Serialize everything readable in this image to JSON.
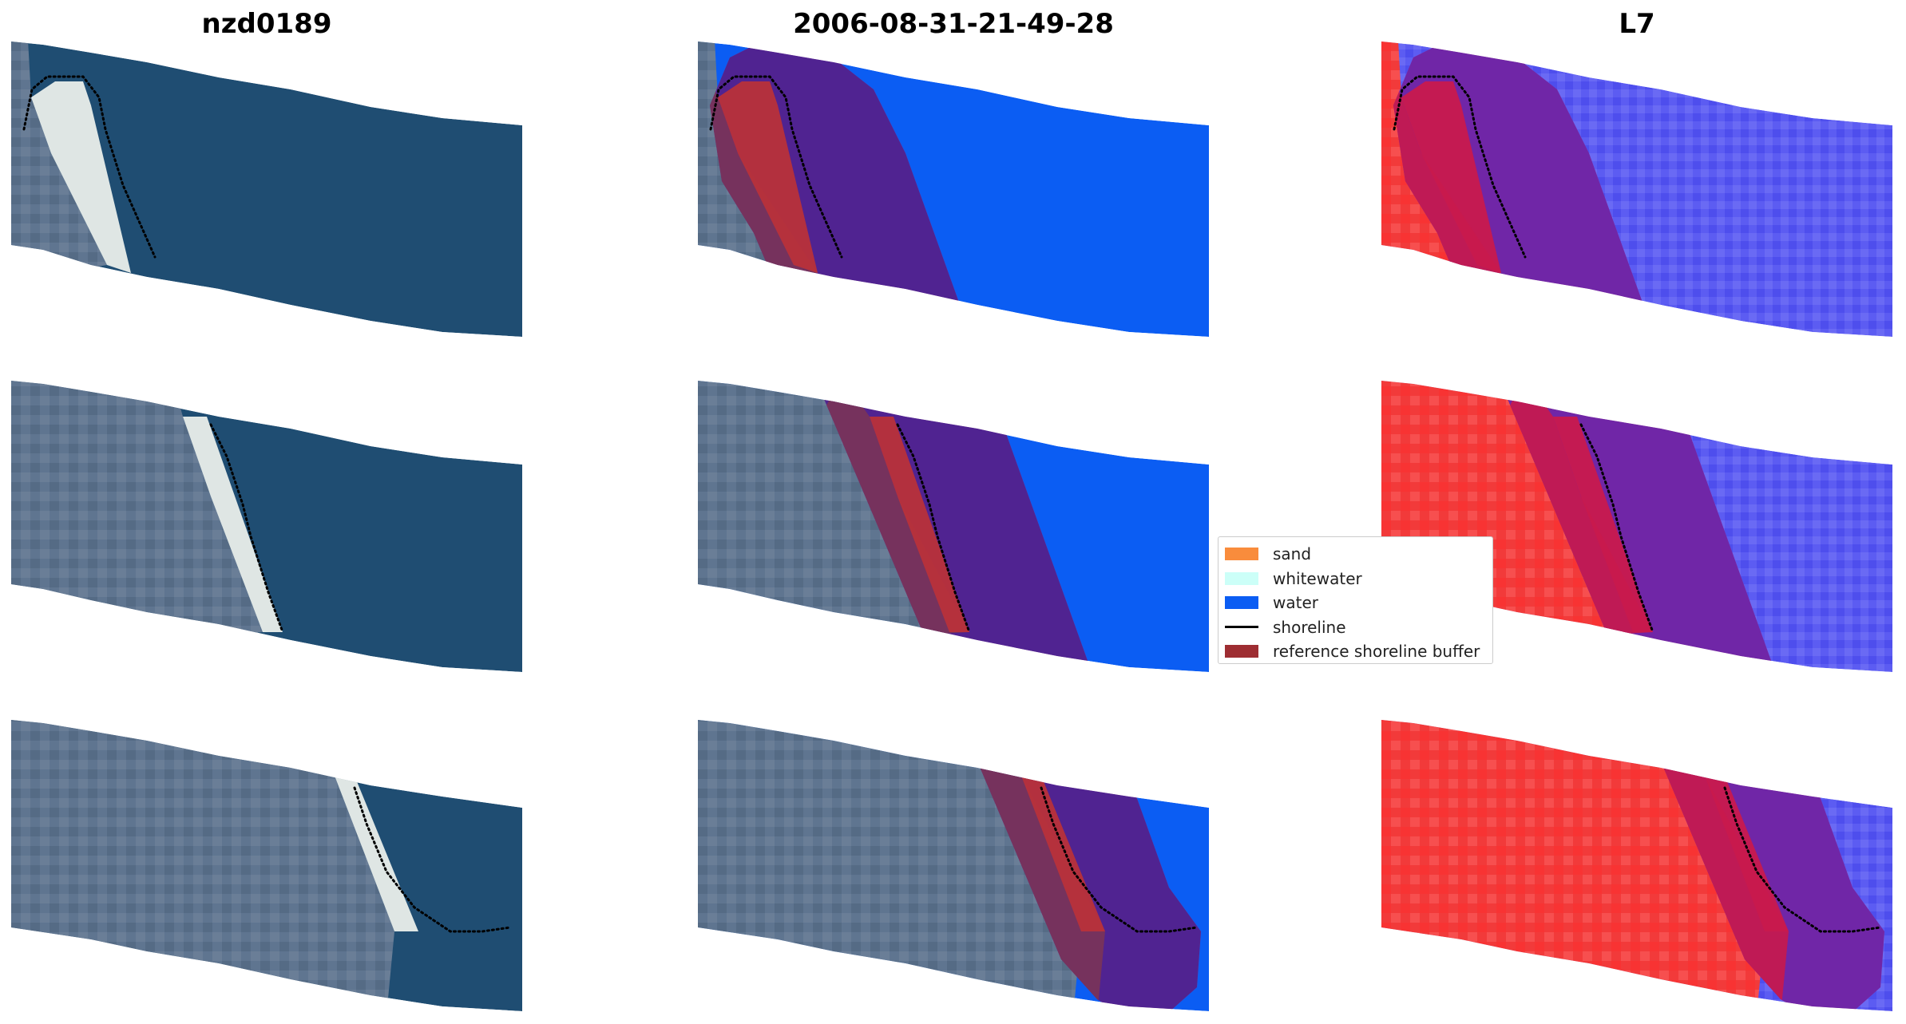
{
  "panels": [
    {
      "title": "nzd0189",
      "mode": "rgb"
    },
    {
      "title": "2006-08-31-21-49-28",
      "mode": "classified"
    },
    {
      "title": "L7",
      "mode": "index"
    }
  ],
  "legend": {
    "items": [
      {
        "label": "sand",
        "color": "#f98c3c",
        "kind": "patch"
      },
      {
        "label": "whitewater",
        "color": "#ccfff8",
        "kind": "patch"
      },
      {
        "label": "water",
        "color": "#0b5df3",
        "kind": "patch"
      },
      {
        "label": "shoreline",
        "color": "#000000",
        "kind": "line"
      },
      {
        "label": "reference shoreline buffer",
        "color": "#9e2d32",
        "kind": "patch"
      }
    ]
  },
  "colors": {
    "land_rgb": "#5f7590",
    "land_rgb_dark": "#4a5f78",
    "water_rgb": "#1f4d72",
    "water_rgb_shallow": "#2a6885",
    "sand_rgb": "#dfe6e4",
    "water_class": "#0b5df3",
    "buffer_overlay": "#b34f82",
    "buffer_overlay_alpha": 0.85,
    "buffer_water": "#4a2090",
    "buffer_land": "#7a3458",
    "sand_class": "#c84146",
    "index_water": "#5c5cf2",
    "index_land": "#f23a3a",
    "index_buffer_land": "#c8194d",
    "index_buffer_water": "#6b23a8"
  }
}
